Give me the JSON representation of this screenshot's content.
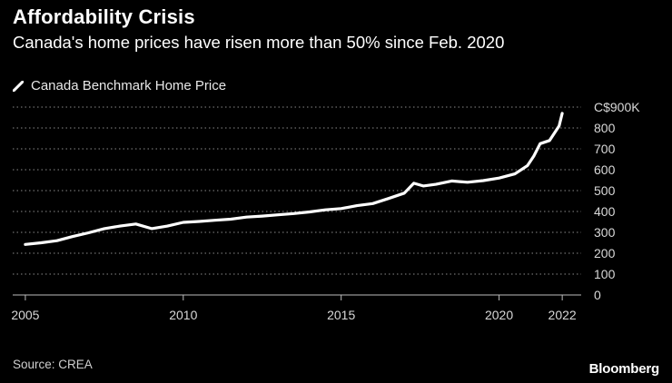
{
  "title": "Affordability Crisis",
  "subtitle": "Canada's home prices have risen more than 50% since Feb. 2020",
  "legend": {
    "label": "Canada Benchmark Home Price",
    "icon": "line-legend-icon"
  },
  "source": "Source: CREA",
  "brand": "Bloomberg",
  "colors": {
    "background": "#000000",
    "line": "#ffffff",
    "grid": "#8a8a8a",
    "text": "#d8d8d8"
  },
  "chart_data": {
    "type": "line",
    "title": "Affordability Crisis",
    "subtitle": "Canada's home prices have risen more than 50% since Feb. 2020",
    "xlabel": "",
    "ylabel": "",
    "xlim": [
      2004.6,
      2022.6
    ],
    "ylim": [
      0,
      900
    ],
    "x_ticks": [
      2005,
      2010,
      2015,
      2020,
      2022
    ],
    "x_tick_labels": [
      "2005",
      "2010",
      "2015",
      "2020",
      "2022"
    ],
    "y_ticks": [
      0,
      100,
      200,
      300,
      400,
      500,
      600,
      700,
      800,
      900
    ],
    "y_tick_labels": [
      "0",
      "100",
      "200",
      "300",
      "400",
      "500",
      "600",
      "700",
      "800",
      "C$900K"
    ],
    "grid": "horizontal dotted",
    "legend_position": "top-left",
    "series": [
      {
        "name": "Canada Benchmark Home Price",
        "x": [
          2005.0,
          2005.5,
          2006.0,
          2006.5,
          2007.0,
          2007.5,
          2008.0,
          2008.5,
          2009.0,
          2009.5,
          2010.0,
          2010.5,
          2011.0,
          2011.5,
          2012.0,
          2012.5,
          2013.0,
          2013.5,
          2014.0,
          2014.5,
          2015.0,
          2015.5,
          2016.0,
          2016.5,
          2017.0,
          2017.3,
          2017.6,
          2018.0,
          2018.5,
          2019.0,
          2019.5,
          2020.0,
          2020.5,
          2020.9,
          2021.1,
          2021.3,
          2021.6,
          2021.9,
          2022.0
        ],
        "values": [
          242,
          250,
          260,
          280,
          298,
          318,
          330,
          340,
          318,
          330,
          348,
          352,
          358,
          363,
          373,
          378,
          384,
          390,
          398,
          408,
          414,
          428,
          438,
          462,
          488,
          535,
          522,
          530,
          546,
          540,
          548,
          560,
          580,
          620,
          665,
          725,
          740,
          810,
          870
        ]
      }
    ]
  }
}
